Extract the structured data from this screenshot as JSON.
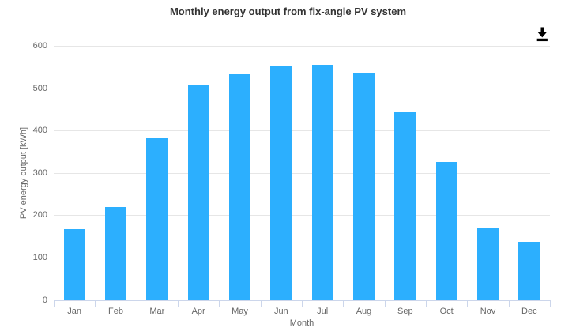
{
  "header": {
    "title": "Monthly energy output from fix-angle PV system"
  },
  "export_button": {
    "icon": "download-icon"
  },
  "colors": {
    "bar": "#2caffe",
    "grid": "#e6e6e6",
    "axis_line": "#ccd6eb",
    "tick_text": "#666666",
    "title_text": "#333333",
    "icon": "#000000"
  },
  "chart_data": {
    "type": "bar",
    "title": "Monthly energy output from fix-angle PV system",
    "xlabel": "Month",
    "ylabel": "PV energy output [kWh]",
    "categories": [
      "Jan",
      "Feb",
      "Mar",
      "Apr",
      "May",
      "Jun",
      "Jul",
      "Aug",
      "Sep",
      "Oct",
      "Nov",
      "Dec"
    ],
    "values": [
      168,
      220,
      383,
      509,
      533,
      552,
      556,
      538,
      444,
      327,
      171,
      138
    ],
    "ylim": [
      0,
      600
    ],
    "yticks": [
      0,
      100,
      200,
      300,
      400,
      500,
      600
    ],
    "grid": true,
    "legend": false
  }
}
